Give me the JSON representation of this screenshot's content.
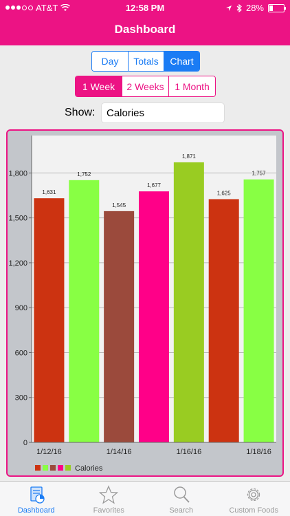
{
  "status_bar": {
    "carrier": "AT&T",
    "time": "12:58 PM",
    "battery": "28%",
    "battery_level": 0.28
  },
  "header": {
    "title": "Dashboard"
  },
  "view_tabs": [
    {
      "label": "Day",
      "active": false
    },
    {
      "label": "Totals",
      "active": false
    },
    {
      "label": "Chart",
      "active": true
    }
  ],
  "range_tabs": [
    {
      "label": "1 Week",
      "active": true
    },
    {
      "label": "2 Weeks",
      "active": false
    },
    {
      "label": "1 Month",
      "active": false
    }
  ],
  "show": {
    "label": "Show:",
    "value": "Calories"
  },
  "chart_data": {
    "type": "bar",
    "categories": [
      "1/12/16",
      "1/13/16",
      "1/14/16",
      "1/15/16",
      "1/16/16",
      "1/17/16",
      "1/18/16"
    ],
    "x_tick_labels": [
      "1/12/16",
      "",
      "1/14/16",
      "",
      "1/16/16",
      "",
      "1/18/16"
    ],
    "values": [
      1631,
      1752,
      1545,
      1677,
      1871,
      1625,
      1757
    ],
    "data_labels": [
      "1,631",
      "1,752",
      "1,545",
      "1,677",
      "1,871",
      "1,625",
      "1,757"
    ],
    "colors": [
      "#cc3311",
      "#88ff44",
      "#9b4a3c",
      "#ff0088",
      "#99cc22",
      "#cc3311",
      "#88ff44"
    ],
    "y_ticks": [
      0,
      300,
      600,
      900,
      1200,
      1500,
      1800
    ],
    "y_tick_labels": [
      "0",
      "300",
      "600",
      "900",
      "1,200",
      "1,500",
      "1,800"
    ],
    "ylim": [
      0,
      2050
    ],
    "grid": true,
    "legend_position": "bottom-left",
    "legend_label": "Calories",
    "legend_colors": [
      "#cc3311",
      "#88ff44",
      "#9b4a3c",
      "#ff0088",
      "#99cc22"
    ]
  },
  "tabbar": [
    {
      "label": "Dashboard",
      "icon": "dashboard-icon",
      "active": true
    },
    {
      "label": "Favorites",
      "icon": "star-icon",
      "active": false
    },
    {
      "label": "Search",
      "icon": "search-icon",
      "active": false
    },
    {
      "label": "Custom Foods",
      "icon": "gear-icon",
      "active": false
    }
  ],
  "colors": {
    "brand": "#ec1384",
    "accent": "#1b7cf4"
  }
}
